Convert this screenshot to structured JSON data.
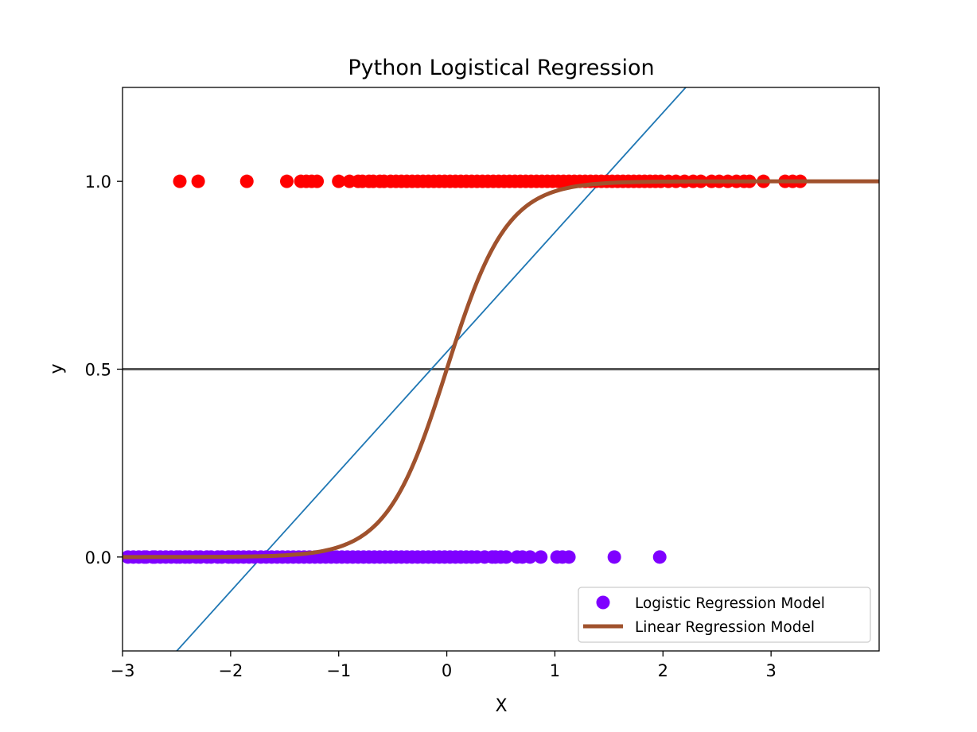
{
  "chart_data": {
    "type": "scatter",
    "title": "Python Logistical Regression",
    "xlabel": "X",
    "ylabel": "y",
    "xlim": [
      -3,
      4
    ],
    "ylim": [
      -0.25,
      1.25
    ],
    "xticks": [
      -3,
      -2,
      -1,
      0,
      1,
      2,
      3
    ],
    "xtick_labels": [
      "−3",
      "−2",
      "−1",
      "0",
      "1",
      "2",
      "3"
    ],
    "yticks": [
      0.0,
      0.5,
      1.0
    ],
    "ytick_labels": [
      "0.0",
      "0.5",
      "1.0"
    ],
    "grid": false,
    "legend_position": "lower-right",
    "series": [
      {
        "name": "Logistic Regression Model",
        "kind": "scatter",
        "color": "#7f00ff",
        "y": 0,
        "x": [
          -2.95,
          -2.9,
          -2.85,
          -2.8,
          -2.78,
          -2.72,
          -2.7,
          -2.65,
          -2.6,
          -2.55,
          -2.5,
          -2.47,
          -2.42,
          -2.38,
          -2.32,
          -2.28,
          -2.22,
          -2.18,
          -2.12,
          -2.08,
          -2.02,
          -1.98,
          -1.93,
          -1.88,
          -1.83,
          -1.78,
          -1.72,
          -1.67,
          -1.62,
          -1.57,
          -1.52,
          -1.47,
          -1.42,
          -1.37,
          -1.32,
          -1.27,
          -1.22,
          -1.17,
          -1.12,
          -1.07,
          -1.02,
          -0.97,
          -0.92,
          -0.87,
          -0.82,
          -0.77,
          -0.72,
          -0.67,
          -0.62,
          -0.57,
          -0.52,
          -0.47,
          -0.42,
          -0.37,
          -0.32,
          -0.27,
          -0.22,
          -0.17,
          -0.12,
          -0.07,
          -0.02,
          0.03,
          0.08,
          0.13,
          0.18,
          0.23,
          0.28,
          0.35,
          0.42,
          0.45,
          0.5,
          0.55,
          0.65,
          0.7,
          0.77,
          0.87,
          1.02,
          1.07,
          1.13,
          1.55,
          1.97
        ]
      },
      {
        "name": "",
        "kind": "scatter",
        "color": "#ff0000",
        "y": 1,
        "x": [
          -2.47,
          -2.3,
          -1.85,
          -1.48,
          -1.35,
          -1.3,
          -1.25,
          -1.2,
          -1.0,
          -0.9,
          -0.82,
          -0.78,
          -0.72,
          -0.68,
          -0.62,
          -0.58,
          -0.52,
          -0.47,
          -0.42,
          -0.37,
          -0.32,
          -0.27,
          -0.22,
          -0.17,
          -0.12,
          -0.07,
          -0.02,
          0.03,
          0.08,
          0.13,
          0.18,
          0.23,
          0.28,
          0.33,
          0.38,
          0.43,
          0.48,
          0.53,
          0.58,
          0.63,
          0.68,
          0.73,
          0.78,
          0.83,
          0.88,
          0.93,
          0.98,
          1.03,
          1.08,
          1.13,
          1.18,
          1.23,
          1.28,
          1.33,
          1.38,
          1.43,
          1.48,
          1.53,
          1.58,
          1.63,
          1.68,
          1.73,
          1.78,
          1.83,
          1.88,
          1.93,
          1.98,
          2.05,
          2.12,
          2.2,
          2.28,
          2.35,
          2.45,
          2.52,
          2.6,
          2.68,
          2.75,
          2.8,
          2.93,
          3.13,
          3.2,
          3.27
        ]
      },
      {
        "name": "Linear Regression Model",
        "kind": "sigmoid",
        "color": "#a0522d",
        "equation": "y = 1 / (1 + exp(-3.6 * x))"
      },
      {
        "name": "",
        "kind": "line",
        "color": "#1f77b4",
        "x": [
          -3,
          4
        ],
        "y": [
          -0.41,
          1.82
        ]
      },
      {
        "name": "",
        "kind": "hline",
        "color": "#555555",
        "y": 0.5
      }
    ],
    "legend": [
      {
        "label": "Logistic Regression Model",
        "marker": "dot",
        "color": "#7f00ff"
      },
      {
        "label": "Linear Regression Model",
        "marker": "line",
        "color": "#a0522d"
      }
    ]
  }
}
